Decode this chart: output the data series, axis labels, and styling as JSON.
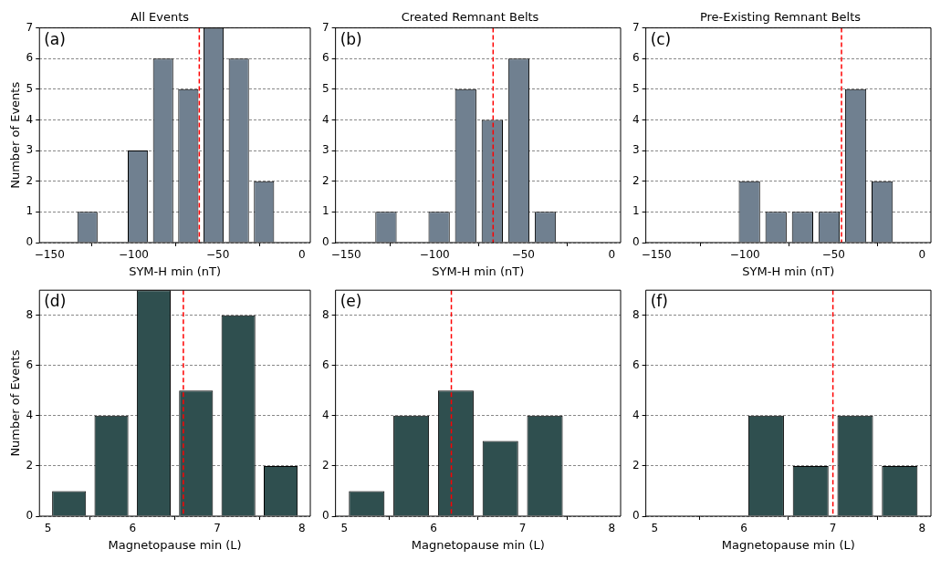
{
  "chart_data": [
    {
      "type": "histogram",
      "title": "All Events",
      "xlabel": "SYM-H min (nT)",
      "ylabel": "Number of Events",
      "annotations": [
        "(a)"
      ],
      "bins": [
        -165,
        -150,
        -135,
        -120,
        -105,
        -90,
        -75,
        -60,
        -45,
        -30,
        -15,
        0
      ],
      "values": [
        0,
        0,
        1,
        0,
        3,
        6,
        5,
        7,
        6,
        2,
        0
      ],
      "color": "#708090",
      "xlim": [
        -156,
        5
      ],
      "xticks": [
        {
          "value": -150,
          "label": "−150"
        },
        {
          "value": -100,
          "label": "−100"
        },
        {
          "value": -50,
          "label": "−50"
        },
        0
      ],
      "ylim": [
        0,
        7
      ],
      "yticks": [
        0,
        1,
        2,
        3,
        4,
        5,
        6,
        7
      ],
      "grid": "y",
      "ref_lines": [
        {
          "axis": "x",
          "value": -61,
          "color": "#ff0000",
          "line_style": "dashed"
        }
      ]
    },
    {
      "type": "histogram",
      "title": "Created Remnant Belts",
      "xlabel": "SYM-H min (nT)",
      "annotations": [
        "(b)"
      ],
      "bins": [
        -165,
        -150,
        -135,
        -120,
        -105,
        -90,
        -75,
        -60,
        -45,
        -30,
        -15,
        0
      ],
      "values": [
        0,
        0,
        1,
        0,
        1,
        5,
        4,
        6,
        1,
        0,
        0
      ],
      "color": "#708090",
      "xlim": [
        -156,
        5
      ],
      "xticks": [
        {
          "value": -150,
          "label": "−150"
        },
        {
          "value": -100,
          "label": "−100"
        },
        {
          "value": -50,
          "label": "−50"
        },
        0
      ],
      "ylim": [
        0,
        7
      ],
      "yticks": [
        0,
        1,
        2,
        3,
        4,
        5,
        6,
        7
      ],
      "grid": "y",
      "ref_lines": [
        {
          "axis": "x",
          "value": -67,
          "color": "#ff0000",
          "line_style": "dashed"
        }
      ]
    },
    {
      "type": "histogram",
      "title": "Pre-Existing Remnant Belts",
      "xlabel": "SYM-H min (nT)",
      "annotations": [
        "(c)"
      ],
      "bins": [
        -165,
        -150,
        -135,
        -120,
        -105,
        -90,
        -75,
        -60,
        -45,
        -30,
        -15,
        0
      ],
      "values": [
        0,
        0,
        0,
        0,
        2,
        1,
        1,
        1,
        5,
        2,
        0
      ],
      "color": "#708090",
      "xlim": [
        -156,
        5
      ],
      "xticks": [
        {
          "value": -150,
          "label": "−150"
        },
        {
          "value": -100,
          "label": "−100"
        },
        {
          "value": -50,
          "label": "−50"
        },
        0
      ],
      "ylim": [
        0,
        7
      ],
      "yticks": [
        0,
        1,
        2,
        3,
        4,
        5,
        6,
        7
      ],
      "grid": "y",
      "ref_lines": [
        {
          "axis": "x",
          "value": -45.5,
          "color": "#ff0000",
          "line_style": "dashed"
        }
      ]
    },
    {
      "type": "histogram",
      "xlabel": "Magnetopause min (L)",
      "ylabel": "Number of Events",
      "annotations": [
        "(d)"
      ],
      "bins": [
        5,
        5.5,
        6,
        6.5,
        7,
        7.5,
        8
      ],
      "values": [
        1,
        4,
        9,
        5,
        8,
        2
      ],
      "color": "#2f4f4f",
      "xlim": [
        4.9,
        8.1
      ],
      "xticks": [
        5,
        6,
        7,
        8
      ],
      "ylim": [
        0,
        9
      ],
      "yticks": [
        0,
        2,
        4,
        6,
        8
      ],
      "grid": "y",
      "ref_lines": [
        {
          "axis": "x",
          "value": 6.6,
          "color": "#ff0000",
          "line_style": "dashed"
        }
      ]
    },
    {
      "type": "histogram",
      "xlabel": "Magnetopause min (L)",
      "annotations": [
        "(e)"
      ],
      "bins": [
        5,
        5.5,
        6,
        6.5,
        7,
        7.5,
        8
      ],
      "values": [
        1,
        4,
        5,
        3,
        4,
        0
      ],
      "color": "#2f4f4f",
      "xlim": [
        4.9,
        8.1
      ],
      "xticks": [
        5,
        6,
        7,
        8
      ],
      "ylim": [
        0,
        9
      ],
      "yticks": [
        0,
        2,
        4,
        6,
        8
      ],
      "grid": "y",
      "ref_lines": [
        {
          "axis": "x",
          "value": 6.2,
          "color": "#ff0000",
          "line_style": "dashed"
        }
      ]
    },
    {
      "type": "histogram",
      "xlabel": "Magnetopause min (L)",
      "annotations": [
        "(f)"
      ],
      "bins": [
        5,
        5.5,
        6,
        6.5,
        7,
        7.5,
        8
      ],
      "values": [
        0,
        0,
        4,
        2,
        4,
        2
      ],
      "color": "#2f4f4f",
      "xlim": [
        4.9,
        8.1
      ],
      "xticks": [
        5,
        6,
        7,
        8
      ],
      "ylim": [
        0,
        9
      ],
      "yticks": [
        0,
        2,
        4,
        6,
        8
      ],
      "grid": "y",
      "ref_lines": [
        {
          "axis": "x",
          "value": 7.0,
          "color": "#ff0000",
          "line_style": "dashed"
        }
      ]
    }
  ]
}
